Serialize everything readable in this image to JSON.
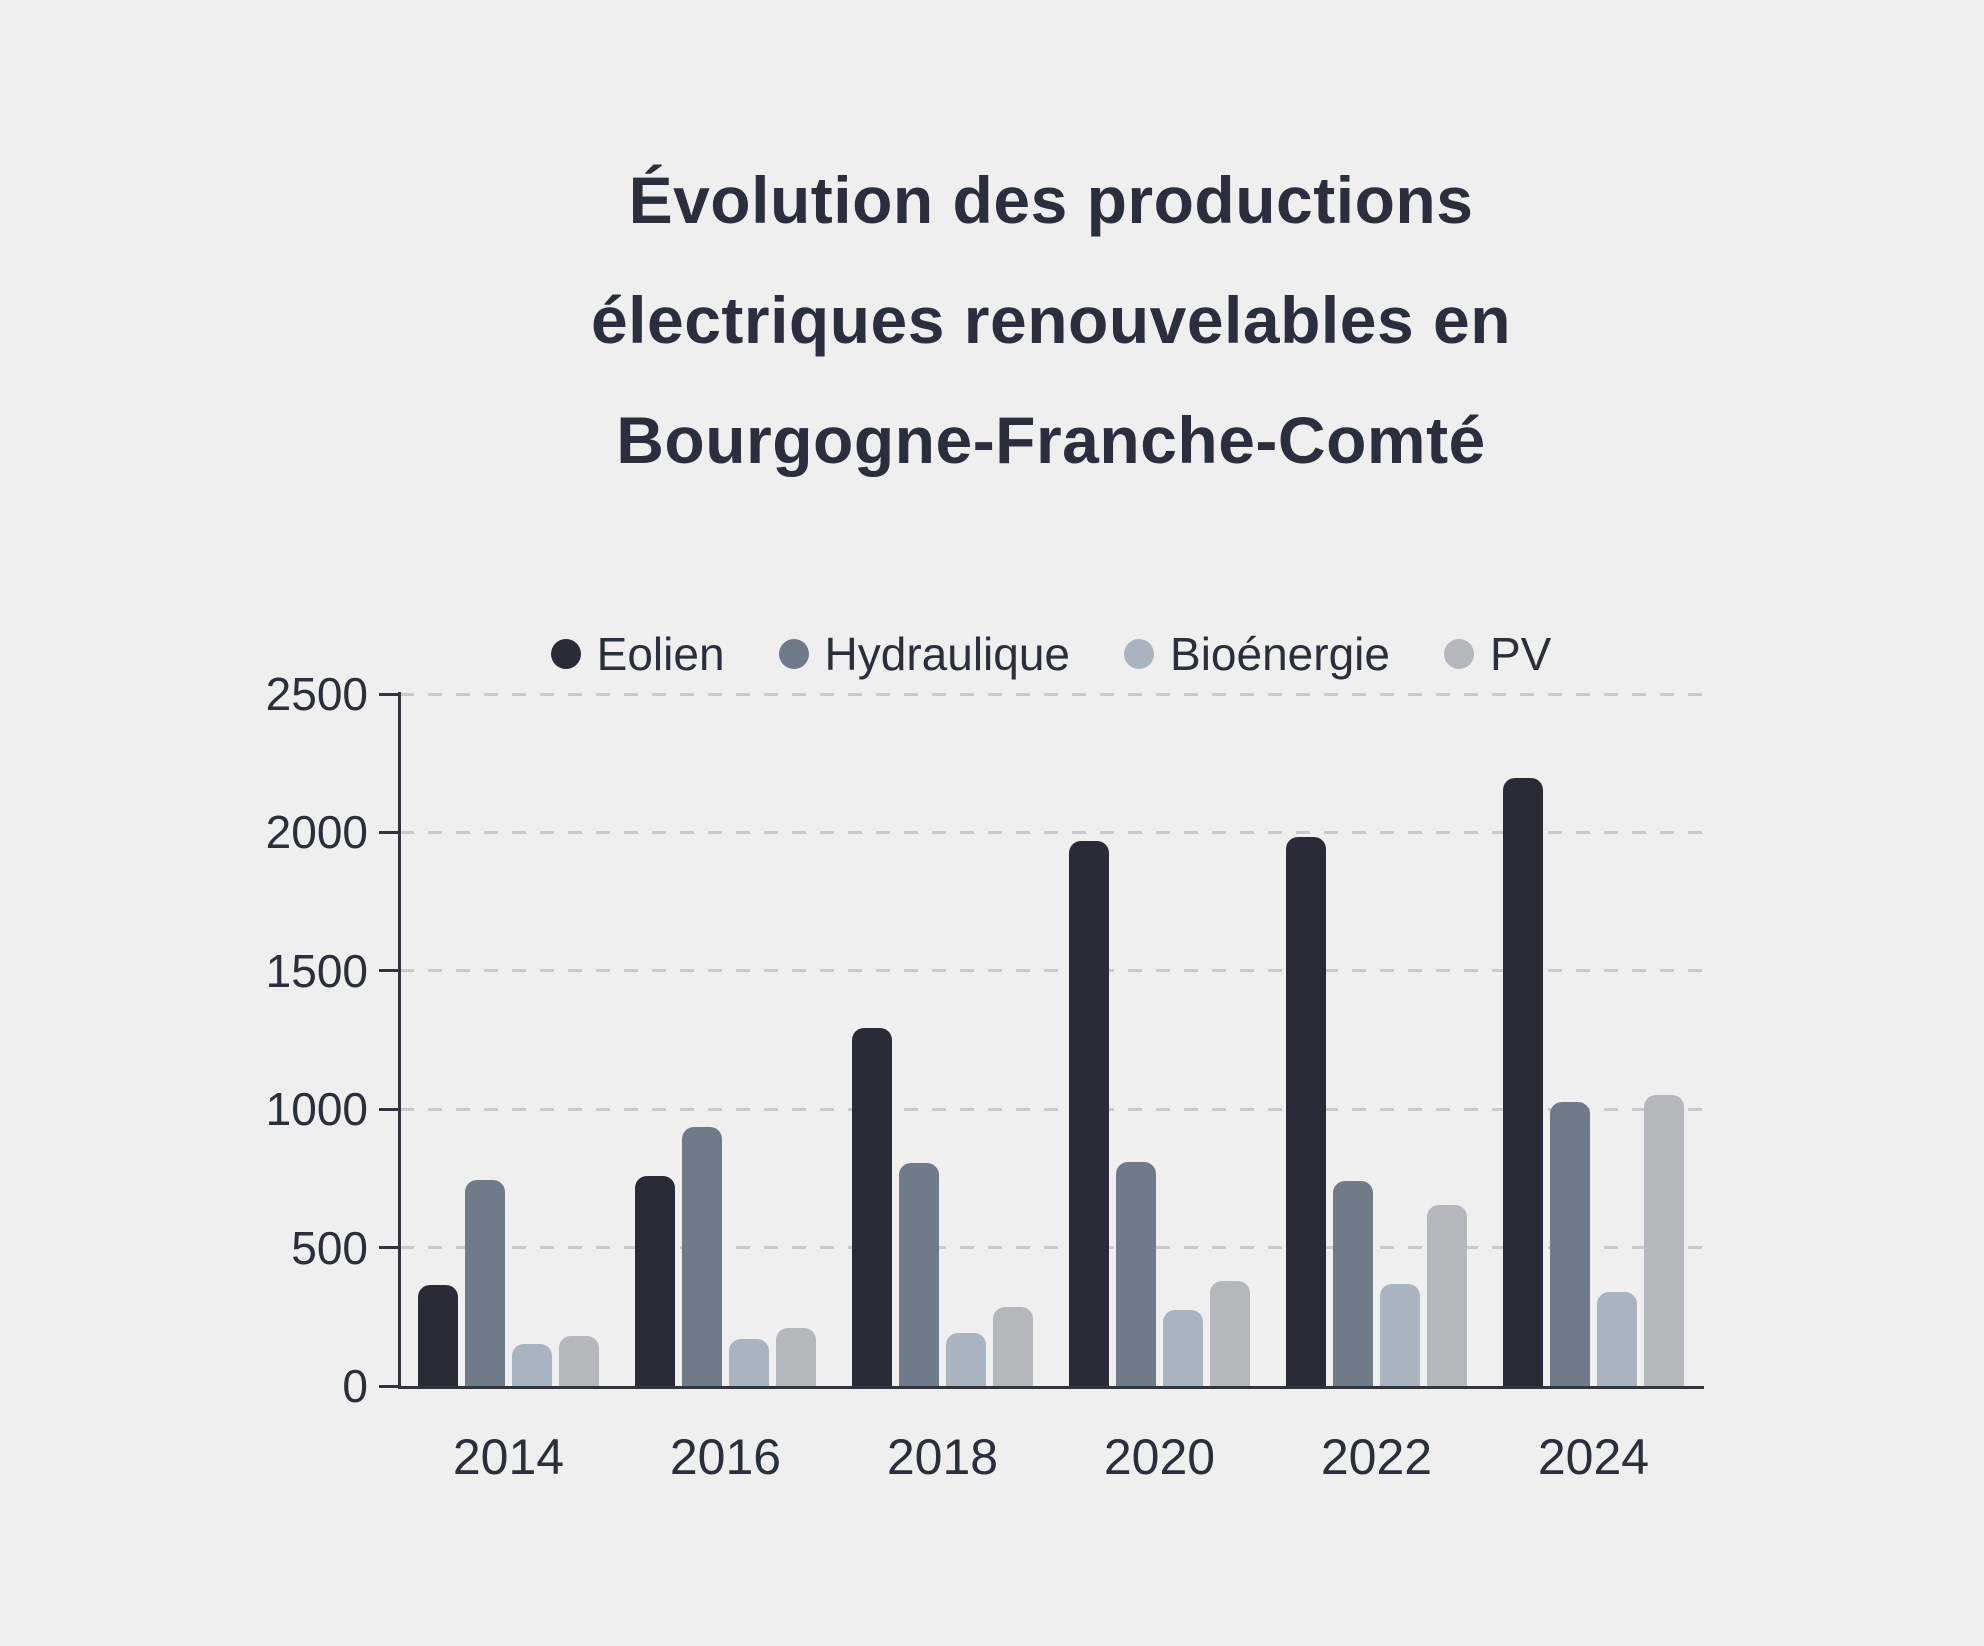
{
  "title": {
    "lines": [
      "Évolution des productions",
      "électriques renouvelables en",
      "Bourgogne-Franche-Comté"
    ]
  },
  "chart_data": {
    "type": "bar",
    "title": "Évolution des productions électriques renouvelables en Bourgogne-Franche-Comté",
    "categories": [
      "2014",
      "2016",
      "2018",
      "2020",
      "2022",
      "2024"
    ],
    "series": [
      {
        "name": "Eolien",
        "color": "#2a2b37",
        "values": [
          365,
          760,
          1295,
          1970,
          1985,
          2195
        ]
      },
      {
        "name": "Hydraulique",
        "color": "#6f7b88",
        "values": [
          745,
          935,
          805,
          810,
          740,
          1025
        ]
      },
      {
        "name": "Bioénergie",
        "color": "#aab4c0",
        "values": [
          150,
          170,
          190,
          275,
          370,
          340
        ]
      },
      {
        "name": "PV",
        "color": "#b5b7bc",
        "values": [
          180,
          210,
          285,
          380,
          655,
          1050
        ]
      }
    ],
    "xlabel": "",
    "ylabel": "",
    "ylim": [
      0,
      2500
    ],
    "yticks": [
      0,
      500,
      1000,
      1500,
      2000,
      2500
    ],
    "grid": "horizontal-dashed",
    "legend_position": "top-center"
  },
  "colors": {
    "background": "#efefef",
    "axis": "#32343e",
    "gridline": "#c9cacc",
    "text": "#2b2e3b"
  }
}
